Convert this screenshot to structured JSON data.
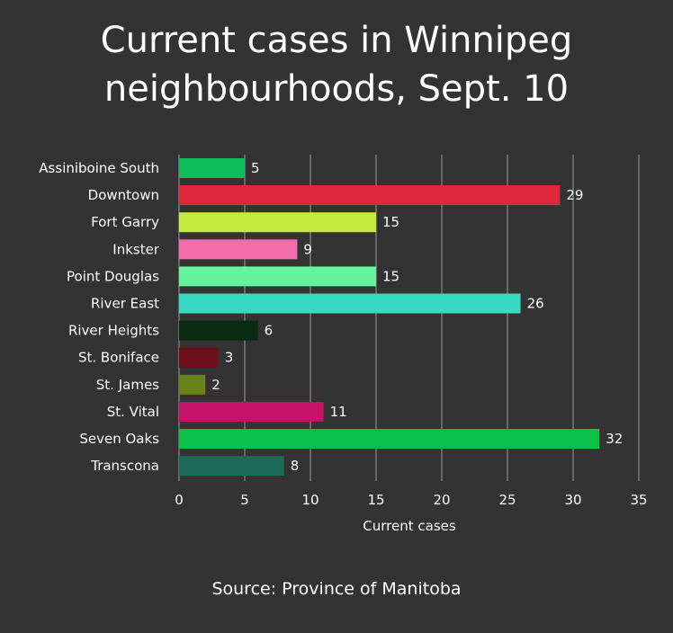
{
  "chart_data": {
    "type": "bar",
    "orientation": "horizontal",
    "title_lines": [
      "Current cases in Winnipeg",
      "neighbourhoods, Sept. 10"
    ],
    "xlabel": "Current cases",
    "ylabel": "",
    "xlim": [
      0,
      35
    ],
    "ticks": [
      0,
      5,
      10,
      15,
      20,
      25,
      30,
      35
    ],
    "grid": true,
    "categories": [
      "Assiniboine South",
      "Downtown",
      "Fort Garry",
      "Inkster",
      "Point Douglas",
      "River East",
      "River Heights",
      "St. Boniface",
      "St. James",
      "St. Vital",
      "Seven Oaks",
      "Transcona"
    ],
    "values": [
      5,
      29,
      15,
      9,
      15,
      26,
      6,
      3,
      2,
      11,
      32,
      8
    ],
    "colors": [
      "#0dbf5a",
      "#e0283d",
      "#c6ea3c",
      "#f46dab",
      "#66f29c",
      "#3ad9c2",
      "#0a2a12",
      "#6e1018",
      "#6a821a",
      "#c6136a",
      "#0ac24a",
      "#1b6a5a"
    ]
  },
  "footer": {
    "source": "Source: Province of Manitoba"
  }
}
